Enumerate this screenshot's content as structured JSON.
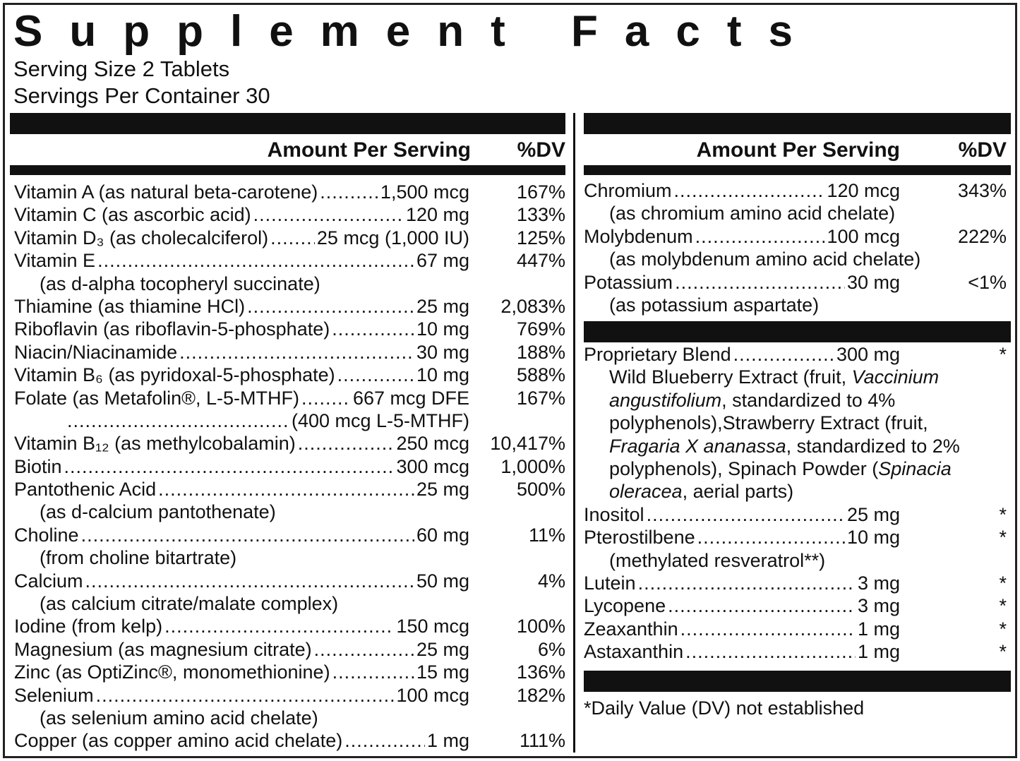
{
  "title": "Supplement Facts",
  "serving_size": "Serving Size 2 Tablets",
  "servings_per_container": "Servings Per Container 30",
  "left": {
    "header": {
      "amount": "Amount Per Serving",
      "dv": "%DV"
    },
    "rows": [
      {
        "name": "Vitamin A (as natural beta-carotene)",
        "amount": "1,500 mcg",
        "dv": "167%"
      },
      {
        "name": "Vitamin C (as ascorbic acid)",
        "amount": "120 mg",
        "dv": "133%"
      },
      {
        "name": "Vitamin D₃ (as cholecalciferol)",
        "amount": "25 mcg (1,000 IU)",
        "dv": "125%"
      },
      {
        "name": "Vitamin E",
        "amount": "67 mg",
        "dv": "447%",
        "note": "(as d-alpha tocopheryl succinate)"
      },
      {
        "name": "Thiamine (as thiamine HCl)",
        "amount": "25 mg",
        "dv": "2,083%"
      },
      {
        "name": "Riboflavin (as riboflavin-5-phosphate)",
        "amount": "10 mg",
        "dv": "769%"
      },
      {
        "name": "Niacin/Niacinamide",
        "amount": "30 mg",
        "dv": "188%"
      },
      {
        "name": "Vitamin B₆ (as pyridoxal-5-phosphate)",
        "amount": "10 mg",
        "dv": "588%"
      },
      {
        "name": "Folate (as Metafolin®, L-5-MTHF)",
        "amount": "667 mcg DFE",
        "dv": "167%",
        "amount_cont": "(400 mcg L-5-MTHF)"
      },
      {
        "name": "Vitamin B₁₂ (as methylcobalamin)",
        "amount": "250 mcg",
        "dv": "10,417%"
      },
      {
        "name": "Biotin",
        "amount": "300 mcg",
        "dv": "1,000%"
      },
      {
        "name": "Pantothenic Acid",
        "amount": "25 mg",
        "dv": "500%",
        "note": "(as d-calcium pantothenate)"
      },
      {
        "name": "Choline",
        "amount": "60 mg",
        "dv": "11%",
        "note": "(from choline bitartrate)"
      },
      {
        "name": "Calcium",
        "amount": "50 mg",
        "dv": "4%",
        "note": "(as calcium citrate/malate complex)"
      },
      {
        "name": "Iodine (from kelp)",
        "amount": "150 mcg",
        "dv": "100%"
      },
      {
        "name": "Magnesium (as magnesium citrate)",
        "amount": "25 mg",
        "dv": "6%"
      },
      {
        "name": "Zinc (as OptiZinc®, monomethionine)",
        "amount": "15 mg",
        "dv": "136%"
      },
      {
        "name": "Selenium",
        "amount": "100 mcg",
        "dv": "182%",
        "note": "(as selenium amino acid chelate)"
      },
      {
        "name": "Copper (as copper amino acid chelate)",
        "amount": "1 mg",
        "dv": "111%"
      }
    ]
  },
  "right": {
    "header": {
      "amount": "Amount Per Serving",
      "dv": "%DV"
    },
    "minerals": [
      {
        "name": "Chromium",
        "amount": "120 mcg",
        "dv": "343%",
        "note": "(as chromium amino acid chelate)"
      },
      {
        "name": "Molybdenum",
        "amount": "100 mcg",
        "dv": "222%",
        "note": "(as molybdenum amino acid chelate)"
      },
      {
        "name": "Potassium",
        "amount": "30 mg",
        "dv": "<1%",
        "note": "(as potassium aspartate)"
      }
    ],
    "blend": {
      "name": "Proprietary Blend",
      "amount": "300 mg",
      "dv": "*",
      "description": [
        {
          "text": "Wild Blueberry Extract (fruit, ",
          "italic": false
        },
        {
          "text": "Vaccinium angustifolium",
          "italic": true
        },
        {
          "text": ", standardized to 4% polyphenols),Strawberry Extract (fruit, ",
          "italic": false
        },
        {
          "text": "Fragaria X ananassa",
          "italic": true
        },
        {
          "text": ", standardized to 2% polyphenols), Spinach Powder (",
          "italic": false
        },
        {
          "text": "Spinacia oleracea",
          "italic": true
        },
        {
          "text": ", aerial parts)",
          "italic": false
        }
      ]
    },
    "others": [
      {
        "name": "Inositol",
        "amount": "25 mg",
        "dv": "*"
      },
      {
        "name": "Pterostilbene",
        "amount": "10 mg",
        "dv": "*",
        "note": "(methylated resveratrol**)"
      },
      {
        "name": "Lutein",
        "amount": "3 mg",
        "dv": "*"
      },
      {
        "name": "Lycopene",
        "amount": "3 mg",
        "dv": "*"
      },
      {
        "name": "Zeaxanthin",
        "amount": "1 mg",
        "dv": "*"
      },
      {
        "name": "Astaxanthin",
        "amount": "1 mg",
        "dv": "*"
      }
    ],
    "footnote": "*Daily Value (DV) not established"
  }
}
